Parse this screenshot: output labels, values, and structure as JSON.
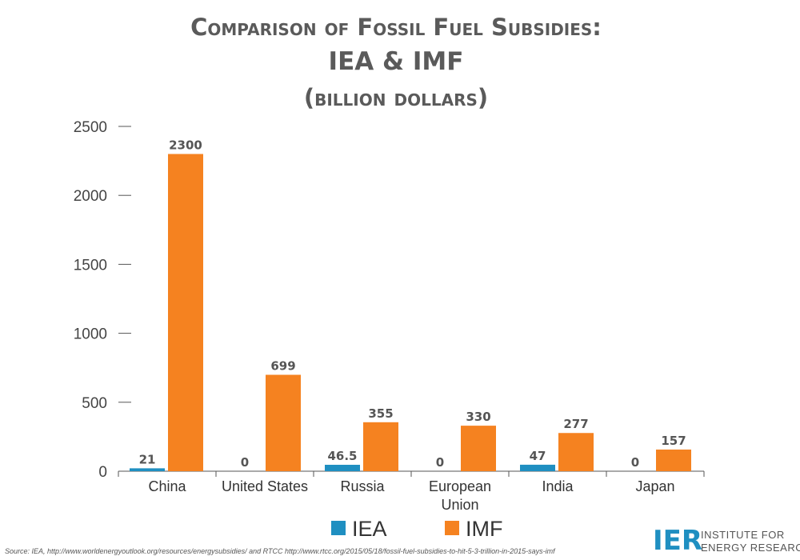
{
  "title": {
    "line1": "Comparison of Fossil Fuel Subsidies:",
    "line2": "IEA & IMF",
    "line3": "(billion dollars)"
  },
  "colors": {
    "IEA": "#1f8fc1",
    "IMF": "#f58220",
    "axis": "#555555"
  },
  "chart_data": {
    "type": "bar",
    "title": "Comparison of Fossil Fuel Subsidies: IEA & IMF (billion dollars)",
    "categories": [
      "China",
      "United States",
      "Russia",
      "European Union",
      "India",
      "Japan"
    ],
    "category_lines": [
      [
        "China"
      ],
      [
        "United States"
      ],
      [
        "Russia"
      ],
      [
        "European",
        "Union"
      ],
      [
        "India"
      ],
      [
        "Japan"
      ]
    ],
    "series": [
      {
        "name": "IEA",
        "values": [
          21,
          0,
          46.5,
          0,
          47,
          0
        ],
        "labels": [
          "21",
          "0",
          "46.5",
          "0",
          "47",
          "0"
        ]
      },
      {
        "name": "IMF",
        "values": [
          2300,
          699,
          355,
          330,
          277,
          157
        ],
        "labels": [
          "2300",
          "699",
          "355",
          "330",
          "277",
          "157"
        ]
      }
    ],
    "ylim": [
      0,
      2500
    ],
    "yticks": [
      0,
      500,
      1000,
      1500,
      2000,
      2500
    ],
    "grid": false,
    "legend": "bottom"
  },
  "footer": {
    "source": "Source: IEA, http://www.worldenergyoutlook.org/resources/energysubsidies/ and RTCC http://www.rtcc.org/2015/05/18/fossil-fuel-subsidies-to-hit-5-3-trillion-in-2015-says-imf",
    "logo_mark": "IER",
    "logo_line1": "INSTITUTE FOR",
    "logo_line2": "ENERGY RESEARCH"
  }
}
